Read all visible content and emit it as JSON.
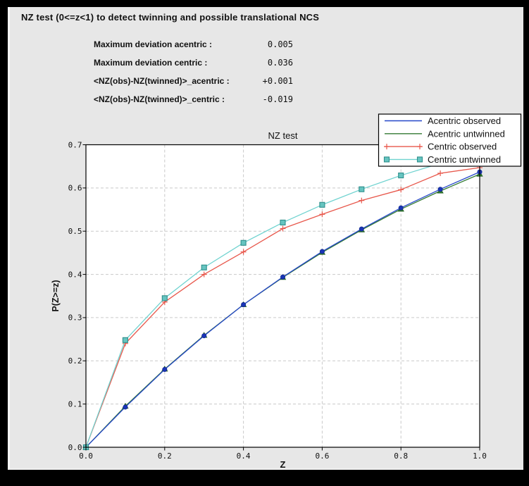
{
  "window": {
    "title": "NZ test (0<=z<1) to detect twinning and possible translational NCS"
  },
  "stats": {
    "rows": [
      {
        "label": "Maximum deviation acentric :",
        "value": "0.005"
      },
      {
        "label": "Maximum deviation centric :",
        "value": "0.036"
      },
      {
        "label": "<NZ(obs)-NZ(twinned)>_acentric :",
        "value": "+0.001"
      },
      {
        "label": "<NZ(obs)-NZ(twinned)>_centric :",
        "value": "-0.019"
      }
    ]
  },
  "chart_data": {
    "type": "line",
    "title": "NZ test",
    "xlabel": "Z",
    "ylabel": "P(Z>=z)",
    "xlim": [
      0.0,
      1.0
    ],
    "ylim": [
      0.0,
      0.7
    ],
    "xticks": [
      0.0,
      0.2,
      0.4,
      0.6,
      0.8,
      1.0
    ],
    "xtick_labels": [
      "0.0",
      "0.2",
      "0.4",
      "0.6",
      "0.8",
      "1.0"
    ],
    "yticks": [
      0.0,
      0.1,
      0.2,
      0.3,
      0.4,
      0.5,
      0.6,
      0.7
    ],
    "ytick_labels": [
      "0.0",
      "0.1",
      "0.2",
      "0.3",
      "0.4",
      "0.5",
      "0.6",
      "0.7"
    ],
    "grid": true,
    "legend_position": "upper right",
    "x": [
      0.0,
      0.1,
      0.2,
      0.3,
      0.4,
      0.5,
      0.6,
      0.7,
      0.8,
      0.9,
      1.0
    ],
    "series": [
      {
        "name": "Acentric observed",
        "color": "#2547c9",
        "marker": "circle",
        "marker_fill": "#1a35b8",
        "marker_edge": "#122a8f",
        "values": [
          0.0,
          0.093,
          0.18,
          0.258,
          0.33,
          0.394,
          0.453,
          0.505,
          0.554,
          0.597,
          0.637
        ]
      },
      {
        "name": "Acentric untwinned",
        "color": "#337a33",
        "marker": "triangle",
        "marker_fill": "#2e7d2e",
        "marker_edge": "#225c22",
        "values": [
          0.0,
          0.095,
          0.181,
          0.259,
          0.33,
          0.393,
          0.451,
          0.503,
          0.551,
          0.593,
          0.632
        ]
      },
      {
        "name": "Centric observed",
        "color": "#e8584c",
        "marker": "plus",
        "marker_fill": "#e8584c",
        "marker_edge": "#e8584c",
        "values": [
          0.0,
          0.24,
          0.336,
          0.4,
          0.452,
          0.506,
          0.539,
          0.571,
          0.596,
          0.634,
          0.647
        ]
      },
      {
        "name": "Centric untwinned",
        "color": "#70d3d0",
        "marker": "square",
        "marker_fill": "#66c4c0",
        "marker_edge": "#2f8f8c",
        "values": [
          0.0,
          0.248,
          0.345,
          0.416,
          0.473,
          0.52,
          0.561,
          0.597,
          0.629,
          0.657,
          0.683
        ]
      }
    ]
  }
}
